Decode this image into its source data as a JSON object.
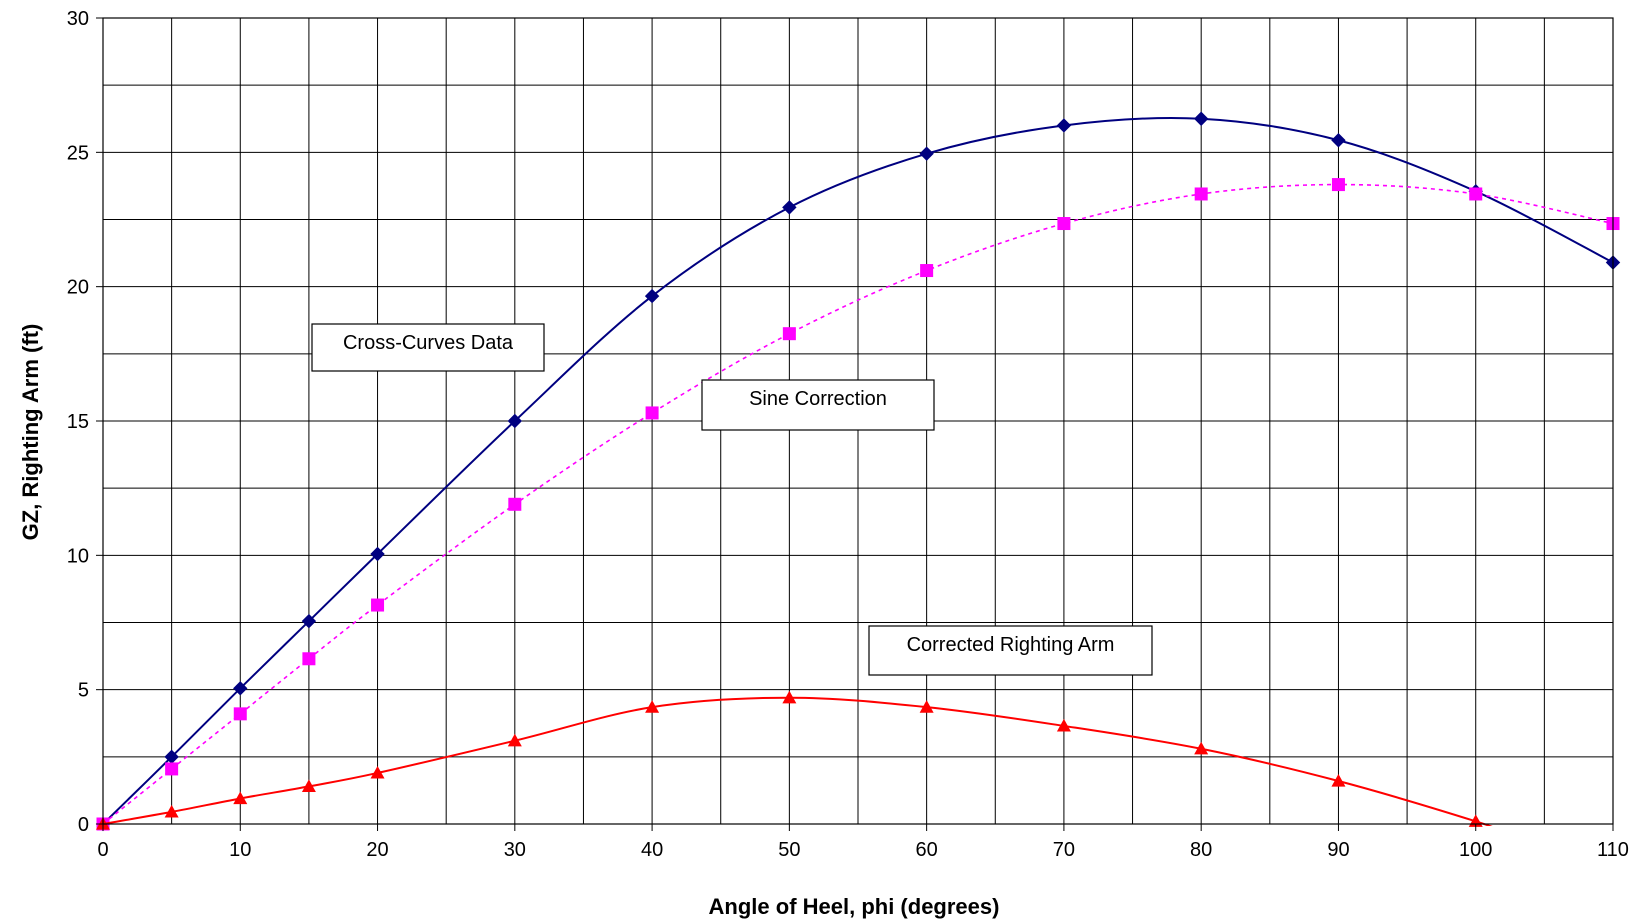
{
  "chart_data": {
    "type": "line",
    "title": "",
    "xlabel": "Angle of Heel, phi (degrees)",
    "ylabel": "GZ, Righting Arm (ft)",
    "xlim": [
      0,
      110
    ],
    "ylim": [
      0,
      30
    ],
    "xticks": [
      0,
      10,
      20,
      30,
      40,
      50,
      60,
      70,
      80,
      90,
      100,
      110
    ],
    "yticks": [
      0,
      5,
      10,
      15,
      20,
      25,
      30
    ],
    "x_minor_step": 5,
    "y_minor_step": 2.5,
    "grid": true,
    "legend": "none",
    "series": [
      {
        "key": "cross-curves",
        "color": "#000080",
        "line_style": "solid",
        "marker": "diamond",
        "x": [
          0,
          5,
          10,
          15,
          20,
          30,
          40,
          50,
          60,
          70,
          80,
          90,
          100,
          110
        ],
        "y": [
          0,
          2.5,
          5.05,
          7.55,
          10.05,
          15.0,
          19.65,
          22.95,
          24.95,
          26.0,
          26.25,
          25.45,
          23.55,
          20.9
        ]
      },
      {
        "key": "sine-correction",
        "color": "#ff00ff",
        "line_style": "dotted",
        "marker": "square",
        "x": [
          0,
          5,
          10,
          15,
          20,
          30,
          40,
          50,
          60,
          70,
          80,
          90,
          100,
          110
        ],
        "y": [
          0,
          2.05,
          4.1,
          6.15,
          8.15,
          11.9,
          15.3,
          18.25,
          20.6,
          22.35,
          23.45,
          23.8,
          23.45,
          22.35
        ]
      },
      {
        "key": "corrected-righting-arm",
        "color": "#ff0000",
        "line_style": "solid",
        "marker": "triangle",
        "x": [
          0,
          5,
          10,
          15,
          20,
          30,
          40,
          50,
          60,
          70,
          80,
          90,
          100
        ],
        "y": [
          0,
          0.45,
          0.95,
          1.4,
          1.9,
          3.1,
          4.35,
          4.7,
          4.35,
          3.65,
          2.8,
          1.6,
          0.1
        ],
        "line_extends_to": {
          "x": 102.5,
          "y": -0.4
        }
      }
    ],
    "annotations": [
      {
        "text": "Cross-Curves Data",
        "series": "cross-curves"
      },
      {
        "text": "Sine Correction",
        "series": "sine-correction"
      },
      {
        "text": "Corrected Righting Arm",
        "series": "corrected-righting-arm"
      }
    ]
  }
}
